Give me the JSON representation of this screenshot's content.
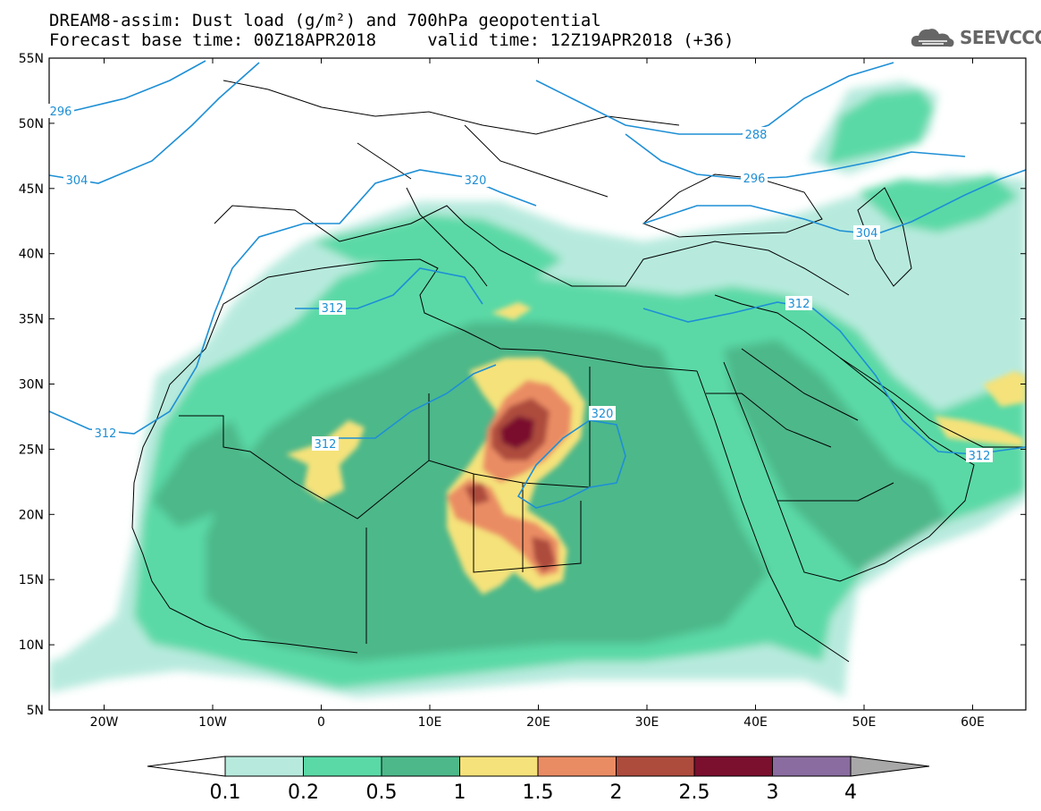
{
  "title": {
    "line1": "DREAM8-assim: Dust load (g/m²) and 700hPa geopotential",
    "line2": "Forecast base time: 00Z18APR2018     valid time: 12Z19APR2018 (+36)"
  },
  "logo": {
    "text": "SEEVCCC",
    "icon": "cloud-logo-icon"
  },
  "map": {
    "lat_labels": [
      "55N",
      "50N",
      "45N",
      "40N",
      "35N",
      "30N",
      "25N",
      "20N",
      "15N",
      "10N",
      "5N"
    ],
    "lon_labels": [
      "20W",
      "10W",
      "0",
      "10E",
      "20E",
      "30E",
      "40E",
      "50E",
      "60E"
    ],
    "contour_labels": [
      "296",
      "304",
      "312",
      "312",
      "312",
      "320",
      "320",
      "288",
      "296",
      "304",
      "312",
      "312"
    ]
  },
  "colorbar": {
    "ticks": [
      "0.1",
      "0.2",
      "0.5",
      "1",
      "1.5",
      "2",
      "2.5",
      "3",
      "4"
    ],
    "colors": [
      "#ffffff",
      "#b7eadd",
      "#5ad9a6",
      "#4db88a",
      "#f5e27a",
      "#ea8c63",
      "#ad4b3d",
      "#7a0f2e",
      "#8a6ca0",
      "#a8a8a8"
    ]
  }
}
